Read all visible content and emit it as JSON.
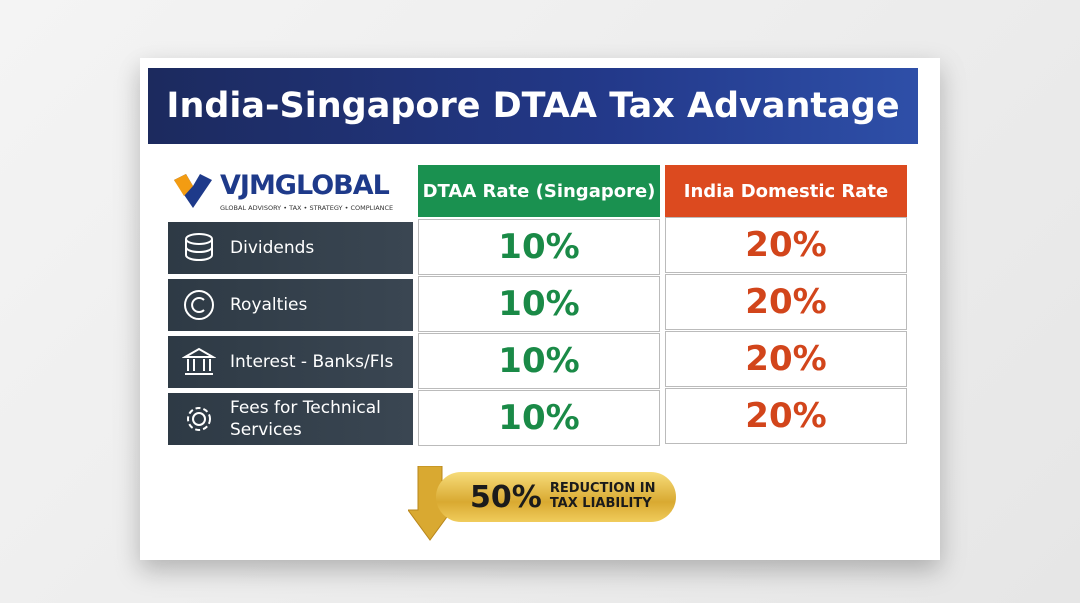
{
  "title": "India-Singapore DTAA Tax Advantage",
  "logo": {
    "name": "VJMGLOBAL",
    "tagline": "GLOBAL ADVISORY • TAX • STRATEGY • COMPLIANCE"
  },
  "table": {
    "headers": [
      "DTAA Rate (Singapore)",
      "India Domestic Rate"
    ],
    "rows": [
      [
        "Dividends",
        "10%",
        "20%"
      ],
      [
        "Royalties",
        "10%",
        "20%"
      ],
      [
        "Interest - Banks/FIs",
        "10%",
        "20%"
      ],
      [
        "Fees for Technical Services",
        "10%",
        "20%"
      ]
    ]
  },
  "badge": {
    "value": "50%",
    "text": [
      "REDUCTION IN",
      "TAX LIABILITY"
    ]
  }
}
